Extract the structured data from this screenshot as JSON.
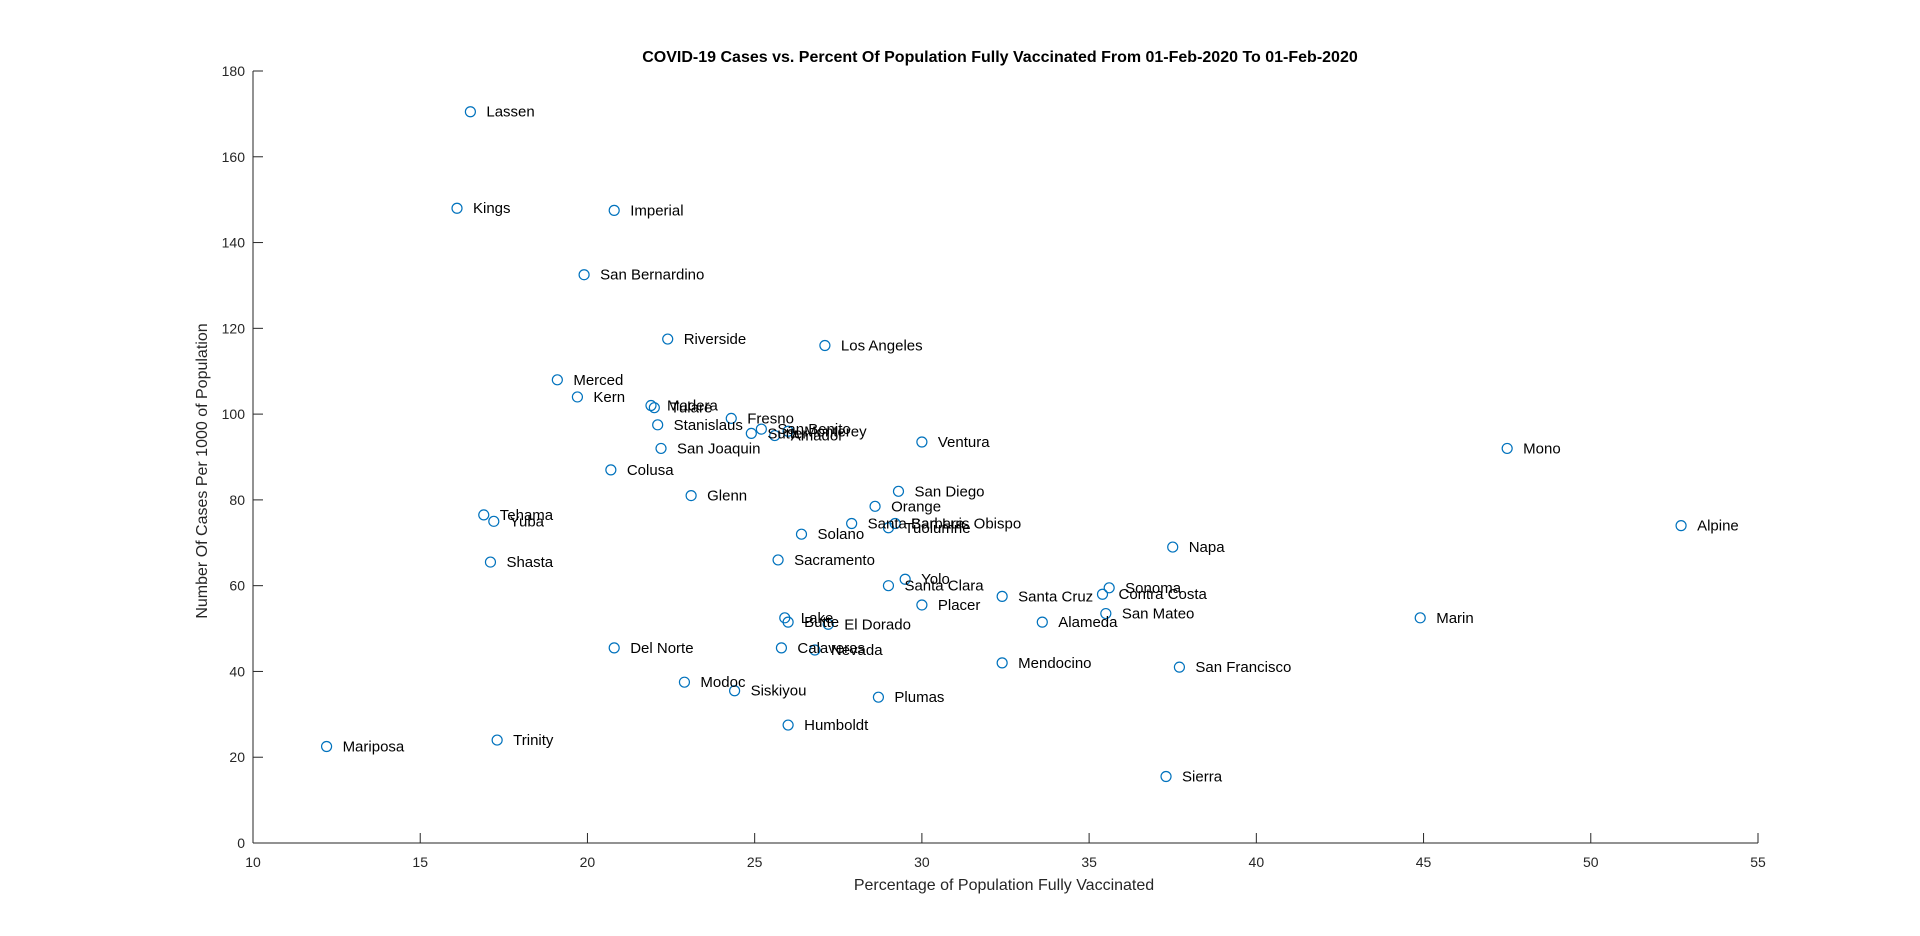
{
  "chart_data": {
    "type": "scatter",
    "title": "COVID-19 Cases vs. Percent Of Population Fully Vaccinated From 01-Feb-2020 To 01-Feb-2020",
    "xlabel": "Percentage of Population Fully Vaccinated",
    "ylabel": "Number Of Cases Per 1000 of Population",
    "xlim": [
      10,
      55
    ],
    "ylim": [
      0,
      180
    ],
    "xticks": [
      10,
      15,
      20,
      25,
      30,
      35,
      40,
      45,
      50,
      55
    ],
    "yticks": [
      0,
      20,
      40,
      60,
      80,
      100,
      120,
      140,
      160,
      180
    ],
    "marker_color": "#0072BD",
    "grid": false,
    "points": [
      {
        "label": "Lassen",
        "x": 16.5,
        "y": 170.5
      },
      {
        "label": "Kings",
        "x": 16.1,
        "y": 148
      },
      {
        "label": "Imperial",
        "x": 20.8,
        "y": 147.5
      },
      {
        "label": "San Bernardino",
        "x": 19.9,
        "y": 132.5
      },
      {
        "label": "Riverside",
        "x": 22.4,
        "y": 117.5
      },
      {
        "label": "Los Angeles",
        "x": 27.1,
        "y": 116
      },
      {
        "label": "Merced",
        "x": 19.1,
        "y": 108
      },
      {
        "label": "Kern",
        "x": 19.7,
        "y": 104
      },
      {
        "label": "Madera",
        "x": 21.9,
        "y": 102
      },
      {
        "label": "Tulare",
        "x": 22.0,
        "y": 101.5
      },
      {
        "label": "Fresno",
        "x": 24.3,
        "y": 99
      },
      {
        "label": "Stanislaus",
        "x": 22.1,
        "y": 97.5
      },
      {
        "label": "San Benito",
        "x": 25.2,
        "y": 96.5
      },
      {
        "label": "Monterey",
        "x": 26.0,
        "y": 96
      },
      {
        "label": "Sutter",
        "x": 24.9,
        "y": 95.5
      },
      {
        "label": "Amador",
        "x": 25.6,
        "y": 95
      },
      {
        "label": "Ventura",
        "x": 30.0,
        "y": 93.5
      },
      {
        "label": "San Joaquin",
        "x": 22.2,
        "y": 92
      },
      {
        "label": "Mono",
        "x": 47.5,
        "y": 92
      },
      {
        "label": "Colusa",
        "x": 20.7,
        "y": 87
      },
      {
        "label": "San Diego",
        "x": 29.3,
        "y": 82
      },
      {
        "label": "Glenn",
        "x": 23.1,
        "y": 81
      },
      {
        "label": "Orange",
        "x": 28.6,
        "y": 78.5
      },
      {
        "label": "Tehama",
        "x": 16.9,
        "y": 76.5
      },
      {
        "label": "Yuba",
        "x": 17.2,
        "y": 75
      },
      {
        "label": "Santa Barbara",
        "x": 27.9,
        "y": 74.5
      },
      {
        "label": "San Luis Obispo",
        "x": 29.2,
        "y": 74.5
      },
      {
        "label": "Tuolumne",
        "x": 29.0,
        "y": 73.5
      },
      {
        "label": "Alpine",
        "x": 52.7,
        "y": 74
      },
      {
        "label": "Solano",
        "x": 26.4,
        "y": 72
      },
      {
        "label": "Napa",
        "x": 37.5,
        "y": 69
      },
      {
        "label": "Shasta",
        "x": 17.1,
        "y": 65.5
      },
      {
        "label": "Sacramento",
        "x": 25.7,
        "y": 66
      },
      {
        "label": "Yolo",
        "x": 29.5,
        "y": 61.5
      },
      {
        "label": "Santa Clara",
        "x": 29.0,
        "y": 60
      },
      {
        "label": "Sonoma",
        "x": 35.6,
        "y": 59.5
      },
      {
        "label": "Contra Costa",
        "x": 35.4,
        "y": 58
      },
      {
        "label": "Santa Cruz",
        "x": 32.4,
        "y": 57.5
      },
      {
        "label": "Placer",
        "x": 30.0,
        "y": 55.5
      },
      {
        "label": "San Mateo",
        "x": 35.5,
        "y": 53.5
      },
      {
        "label": "Marin",
        "x": 44.9,
        "y": 52.5
      },
      {
        "label": "Lake",
        "x": 25.9,
        "y": 52.5
      },
      {
        "label": "Butte",
        "x": 26.0,
        "y": 51.5
      },
      {
        "label": "El Dorado",
        "x": 27.2,
        "y": 51
      },
      {
        "label": "Alameda",
        "x": 33.6,
        "y": 51.5
      },
      {
        "label": "Del Norte",
        "x": 20.8,
        "y": 45.5
      },
      {
        "label": "Calaveras",
        "x": 25.8,
        "y": 45.5
      },
      {
        "label": "Nevada",
        "x": 26.8,
        "y": 45
      },
      {
        "label": "Mendocino",
        "x": 32.4,
        "y": 42
      },
      {
        "label": "San Francisco",
        "x": 37.7,
        "y": 41
      },
      {
        "label": "Modoc",
        "x": 22.9,
        "y": 37.5
      },
      {
        "label": "Siskiyou",
        "x": 24.4,
        "y": 35.5
      },
      {
        "label": "Plumas",
        "x": 28.7,
        "y": 34
      },
      {
        "label": "Humboldt",
        "x": 26.0,
        "y": 27.5
      },
      {
        "label": "Trinity",
        "x": 17.3,
        "y": 24
      },
      {
        "label": "Mariposa",
        "x": 12.2,
        "y": 22.5
      },
      {
        "label": "Sierra",
        "x": 37.3,
        "y": 15.5
      }
    ]
  }
}
